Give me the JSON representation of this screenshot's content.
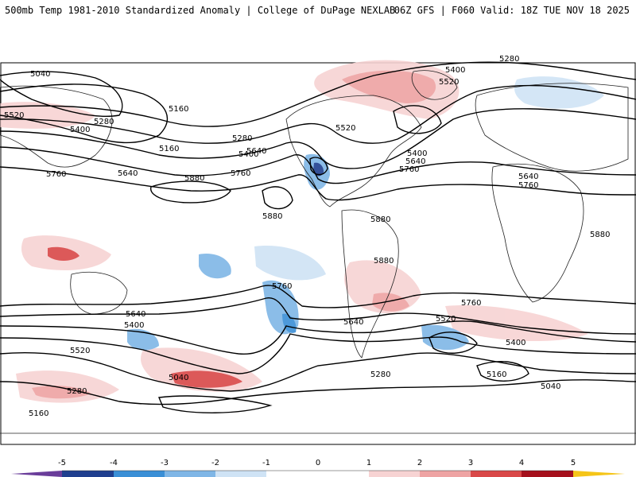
{
  "header": {
    "title_left": "500mb Temp 1981-2010 Standardized Anomaly | College of DuPage NEXLAB",
    "title_right": "06Z GFS | F060 Valid: 18Z TUE NOV 18 2025"
  },
  "colors": {
    "neg5": "#6a3d9a",
    "neg4": "#1f3f8f",
    "neg3": "#3a8fd6",
    "neg2": "#7fb6e6",
    "neg1": "#cfe3f5",
    "zero": "#ffffff",
    "pos1": "#f7d3d3",
    "pos2": "#eea3a3",
    "pos3": "#d94848",
    "pos4": "#a5101c",
    "pos5": "#f5c518"
  },
  "colorbar": {
    "ticks": [
      "-5",
      "-4",
      "-3",
      "-2",
      "-1",
      "0",
      "1",
      "2",
      "3",
      "4",
      "5"
    ]
  },
  "contours": {
    "labels": [
      "5040",
      "5160",
      "5280",
      "5400",
      "5520",
      "5640",
      "5760",
      "5880",
      "5400",
      "5280",
      "5520",
      "5160",
      "5640",
      "5400",
      "5760",
      "5880",
      "5520",
      "5400",
      "5640",
      "5760",
      "5280",
      "5640",
      "5760",
      "5880",
      "5880",
      "5760",
      "5640",
      "5400",
      "5520",
      "5160",
      "5280",
      "5040",
      "5880",
      "5760",
      "5640",
      "5520",
      "5400",
      "5280",
      "5160",
      "5040"
    ]
  }
}
